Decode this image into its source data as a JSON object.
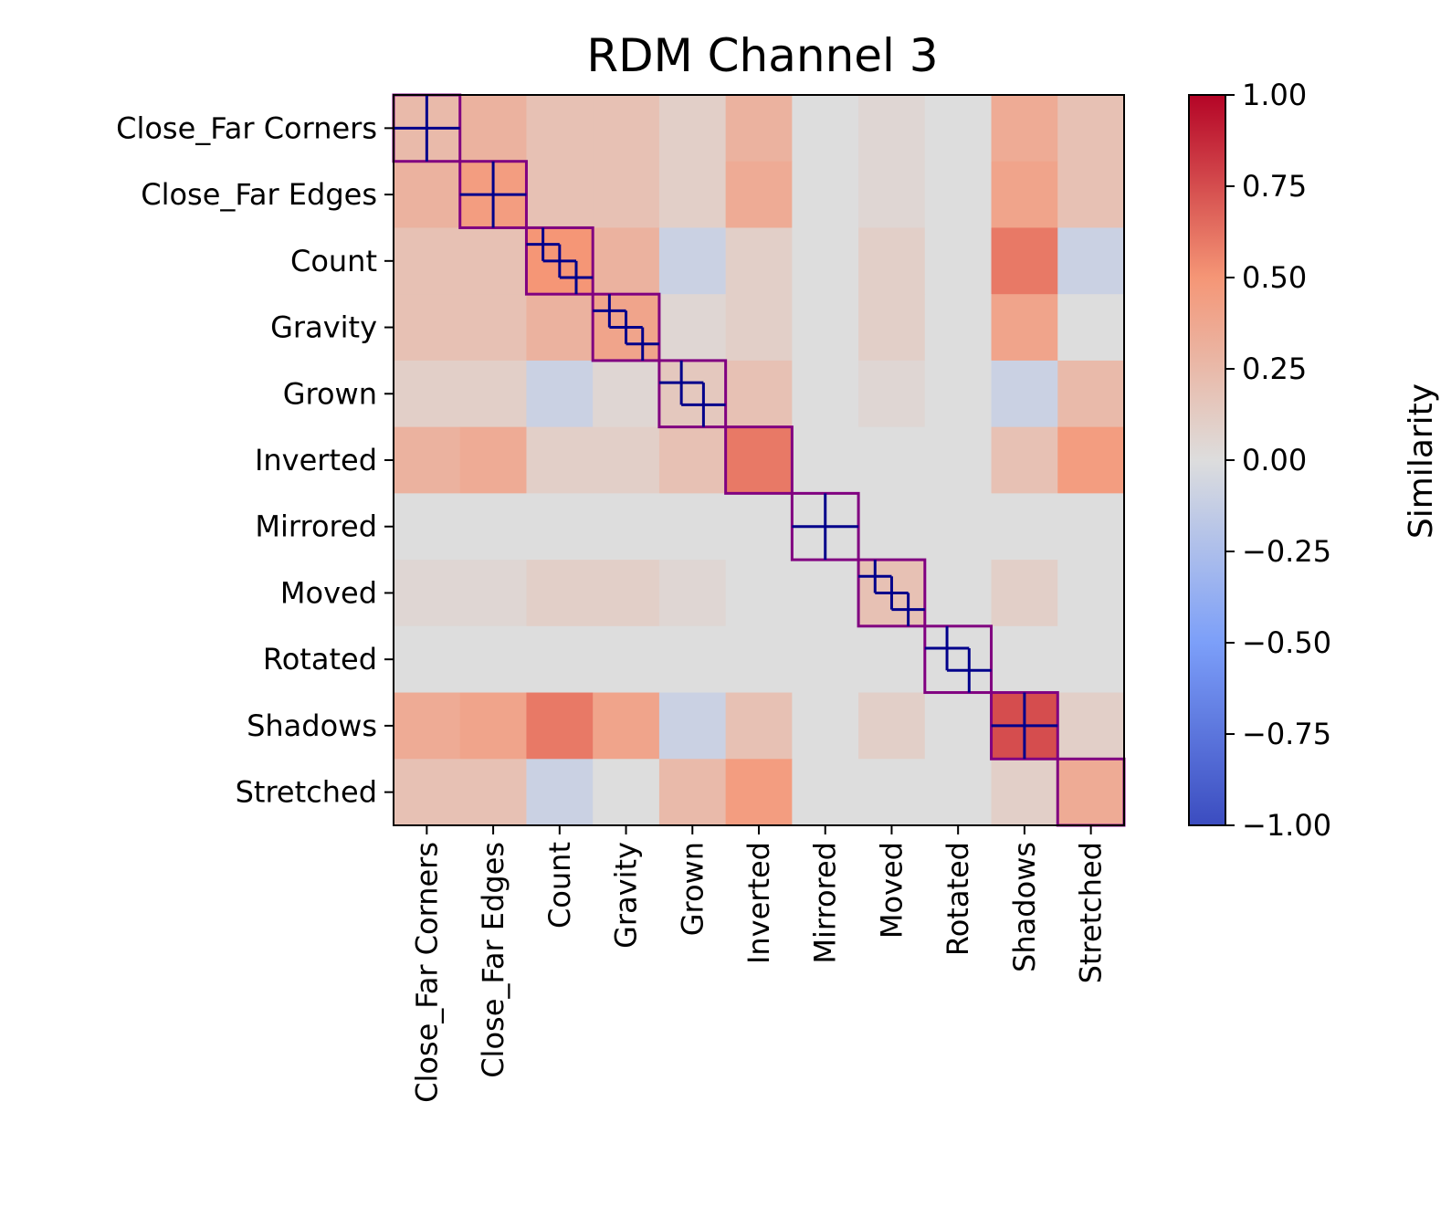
{
  "chart_data": {
    "type": "heatmap",
    "title": "RDM Channel 3",
    "categories": [
      "Close_Far Corners",
      "Close_Far Edges",
      "Count",
      "Gravity",
      "Grown",
      "Inverted",
      "Mirrored",
      "Moved",
      "Rotated",
      "Shadows",
      "Stretched"
    ],
    "subgroups": [
      2,
      2,
      4,
      4,
      3,
      1,
      2,
      4,
      3,
      2,
      1
    ],
    "block_similarity": [
      [
        0.25,
        0.3,
        0.2,
        0.2,
        0.1,
        0.3,
        0.0,
        0.05,
        0.0,
        0.35,
        0.2
      ],
      [
        0.3,
        0.45,
        0.2,
        0.2,
        0.1,
        0.35,
        0.0,
        0.05,
        0.0,
        0.4,
        0.2
      ],
      [
        0.2,
        0.2,
        0.5,
        0.3,
        -0.1,
        0.1,
        0.0,
        0.1,
        0.0,
        0.6,
        -0.1
      ],
      [
        0.2,
        0.2,
        0.3,
        0.4,
        0.05,
        0.1,
        0.0,
        0.1,
        0.0,
        0.4,
        0.0
      ],
      [
        0.1,
        0.1,
        -0.1,
        0.05,
        0.15,
        0.2,
        0.0,
        0.05,
        0.0,
        -0.1,
        0.25
      ],
      [
        0.3,
        0.35,
        0.1,
        0.1,
        0.2,
        0.6,
        0.0,
        0.0,
        0.0,
        0.2,
        0.45
      ],
      [
        0.0,
        0.0,
        0.0,
        0.0,
        0.0,
        0.0,
        0.0,
        0.0,
        0.0,
        0.0,
        0.0
      ],
      [
        0.05,
        0.05,
        0.1,
        0.1,
        0.05,
        0.0,
        0.0,
        0.2,
        0.0,
        0.1,
        0.0
      ],
      [
        0.0,
        0.0,
        0.0,
        0.0,
        0.0,
        0.0,
        0.0,
        0.0,
        0.0,
        0.0,
        0.0
      ],
      [
        0.35,
        0.4,
        0.6,
        0.4,
        -0.1,
        0.2,
        0.0,
        0.1,
        0.0,
        0.75,
        0.1
      ],
      [
        0.2,
        0.2,
        -0.1,
        0.0,
        0.25,
        0.45,
        0.0,
        0.0,
        0.0,
        0.1,
        0.35
      ]
    ],
    "colorbar": {
      "label": "Similarity",
      "range": [
        -1.0,
        1.0
      ],
      "ticks": [
        "1.00",
        "0.75",
        "0.50",
        "0.25",
        "0.00",
        "−0.25",
        "−0.50",
        "−0.75",
        "−1.00"
      ],
      "tick_values": [
        1.0,
        0.75,
        0.5,
        0.25,
        0.0,
        -0.25,
        -0.5,
        -0.75,
        -1.0
      ],
      "colormap": "coolwarm"
    },
    "outline_colors": {
      "group_box": "#800080",
      "subgroup_lines": "#00008b"
    }
  }
}
